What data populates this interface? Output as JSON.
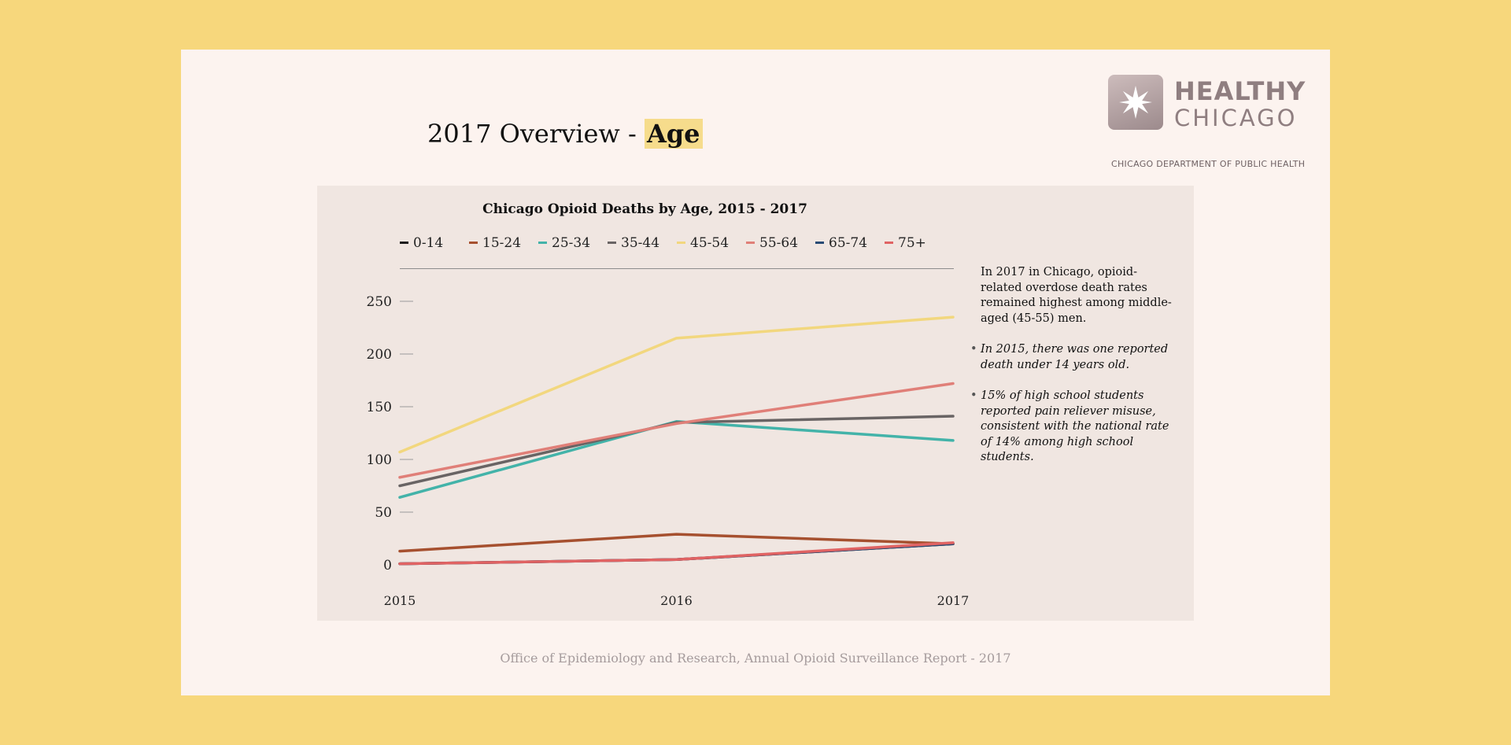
{
  "slide": {
    "title_plain": "2017 Overview - ",
    "title_highlight": "Age",
    "footer": "Office of Epidemiology and Research, Annual Opioid Surveillance Report - 2017"
  },
  "logo": {
    "line1": "HEALTHY",
    "line2": "CHICAGO",
    "line3": "CHICAGO DEPARTMENT OF PUBLIC HEALTH",
    "icon": "star-icon"
  },
  "side_text": {
    "intro": "In 2017 in Chicago, opioid-related overdose death rates remained highest among middle-aged (45-55) men.",
    "bullets": [
      "In 2015, there was one reported death under 14 years old.",
      "15% of high school students reported pain reliever misuse, consistent with the national rate of 14% among high school students."
    ]
  },
  "chart_data": {
    "type": "line",
    "title": "Chicago Opioid Deaths by Age, 2015 - 2017",
    "xlabel": "",
    "ylabel": "",
    "x": [
      "2015",
      "2016",
      "2017"
    ],
    "ylim": [
      0,
      250
    ],
    "yticks": [
      0,
      50,
      100,
      150,
      200,
      250
    ],
    "legend_position": "top",
    "grid": false,
    "series": [
      {
        "name": "0-14",
        "color": "#1c1c1c",
        "values": [
          1,
          5,
          20
        ]
      },
      {
        "name": "15-24",
        "color": "#a6502f",
        "values": [
          13,
          29,
          20
        ]
      },
      {
        "name": "25-34",
        "color": "#43b3a9",
        "values": [
          64,
          136,
          118
        ]
      },
      {
        "name": "35-44",
        "color": "#696464",
        "values": [
          75,
          135,
          141
        ]
      },
      {
        "name": "45-54",
        "color": "#f2d77e",
        "values": [
          107,
          215,
          235
        ]
      },
      {
        "name": "55-64",
        "color": "#e07f78",
        "values": [
          83,
          134,
          172
        ]
      },
      {
        "name": "65-74",
        "color": "#284a74",
        "values": [
          1,
          5,
          20
        ]
      },
      {
        "name": "75+",
        "color": "#e06363",
        "values": [
          1,
          5,
          21
        ]
      }
    ]
  }
}
